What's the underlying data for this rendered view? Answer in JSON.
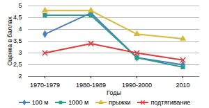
{
  "chart_data": {
    "type": "line",
    "x_label": "Годы",
    "y_label": "Оценка в баллах",
    "categories": [
      "1970-1979",
      "1980-1989",
      "1990-2000",
      "2010"
    ],
    "series": [
      {
        "name": "100 м",
        "color": "#4a7ebb",
        "marker": "diamond",
        "values": [
          3.8,
          4.7,
          2.8,
          2.5
        ]
      },
      {
        "name": "1000 м",
        "color": "#2a9d8f",
        "marker": "square",
        "values": [
          4.6,
          4.6,
          2.8,
          2.4
        ]
      },
      {
        "name": "прыжки",
        "color": "#d9b93a",
        "marker": "triangle",
        "values": [
          4.8,
          4.8,
          3.8,
          3.6
        ]
      },
      {
        "name": "подтягивание",
        "color": "#e03c3c",
        "marker": "cross",
        "values": [
          3.0,
          3.4,
          3.0,
          2.7
        ]
      }
    ],
    "ylim": [
      2,
      5
    ],
    "yticks": [
      2,
      {
        "value": 2.5,
        "label": "2,5"
      },
      3,
      {
        "value": 3.5,
        "label": "3,5"
      },
      4,
      {
        "value": 4.5,
        "label": "4,5"
      },
      5
    ],
    "grid": true,
    "legend": "bottom"
  }
}
